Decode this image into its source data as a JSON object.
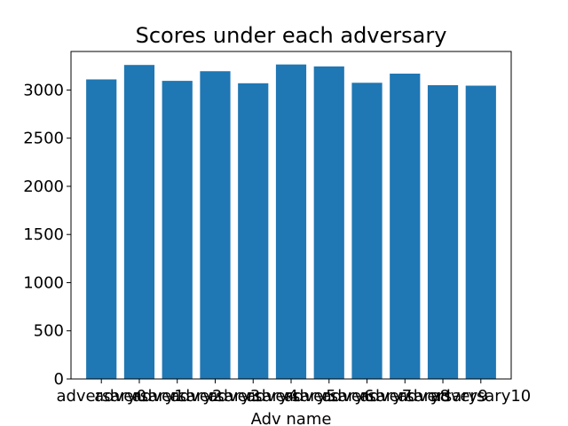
{
  "chart_data": {
    "type": "bar",
    "title": "Scores under each adversary",
    "xlabel": "Adv name",
    "ylabel": "",
    "categories": [
      "adversary0",
      "adversary1",
      "adversary2",
      "adversary3",
      "adversary4",
      "adversary5",
      "adversary6",
      "adversary7",
      "adversary8",
      "adversary9",
      "adversary10"
    ],
    "values": [
      3110,
      3260,
      3095,
      3195,
      3070,
      3265,
      3245,
      3075,
      3170,
      3050,
      3045
    ],
    "ylim": [
      0,
      3400
    ],
    "yticks": [
      0,
      500,
      1000,
      1500,
      2000,
      2500,
      3000
    ],
    "grid": false,
    "color": "#1f77b4"
  }
}
